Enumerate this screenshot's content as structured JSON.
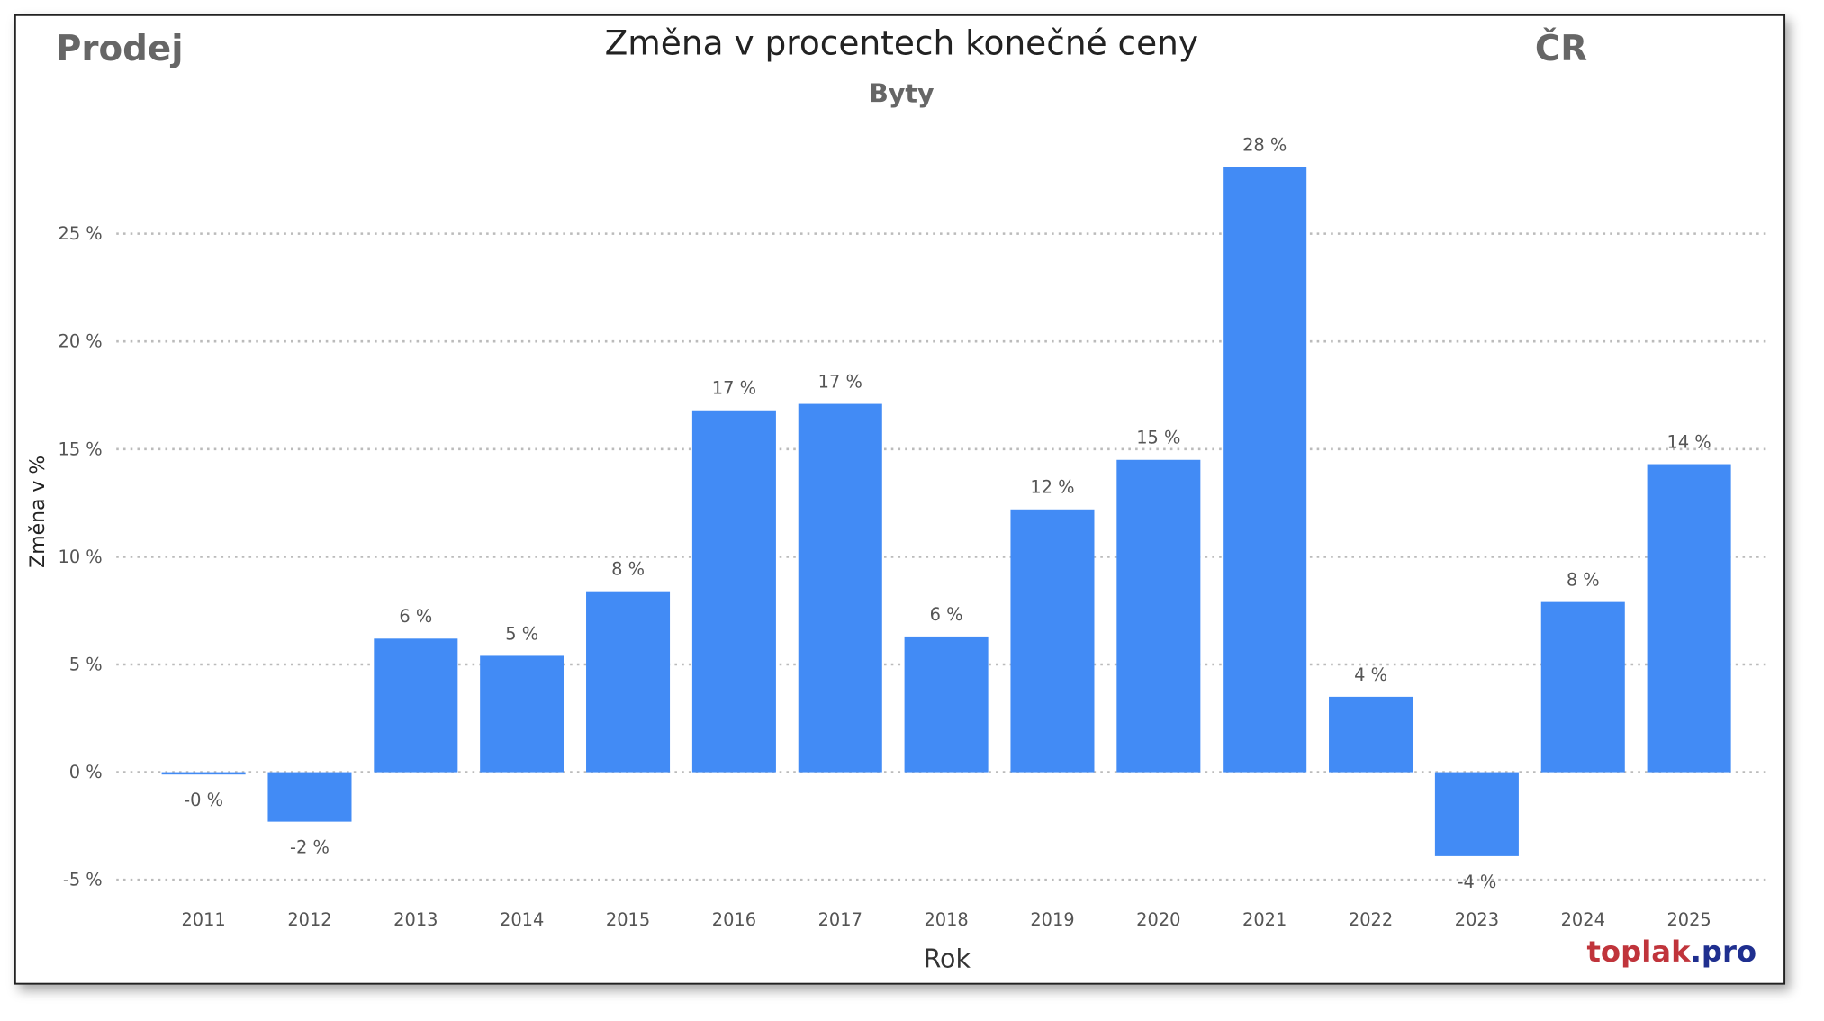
{
  "header": {
    "left_label": "Prodej",
    "right_label": "ČR",
    "watermark_part1": "toplak",
    "watermark_part2": ".pro"
  },
  "colors": {
    "bar": "#428BF5",
    "watermark_red": "#C0343B",
    "watermark_blue": "#1F2F8F"
  },
  "chart_data": {
    "type": "bar",
    "title": "Změna v procentech konečné ceny",
    "subtitle": "Byty",
    "xlabel": "Rok",
    "ylabel": "Změna v %",
    "ylim": [
      -5,
      28
    ],
    "yticks": [
      -5,
      0,
      5,
      10,
      15,
      20,
      25
    ],
    "ytick_labels": [
      "-5 %",
      "0 %",
      "5 %",
      "10 %",
      "15 %",
      "20 %",
      "25 %"
    ],
    "grid": "horizontal dotted",
    "categories": [
      "2011",
      "2012",
      "2013",
      "2014",
      "2015",
      "2016",
      "2017",
      "2018",
      "2019",
      "2020",
      "2021",
      "2022",
      "2023",
      "2024",
      "2025"
    ],
    "values": [
      -0.1,
      -2.3,
      6.2,
      5.4,
      8.4,
      16.8,
      17.1,
      6.3,
      12.2,
      14.5,
      28.1,
      3.5,
      -3.9,
      7.9,
      14.3
    ],
    "data_labels": [
      "-0 %",
      "-2 %",
      "6 %",
      "5 %",
      "8 %",
      "17 %",
      "17 %",
      "6 %",
      "12 %",
      "15 %",
      "28 %",
      "4 %",
      "-4 %",
      "8 %",
      "14 %"
    ]
  }
}
